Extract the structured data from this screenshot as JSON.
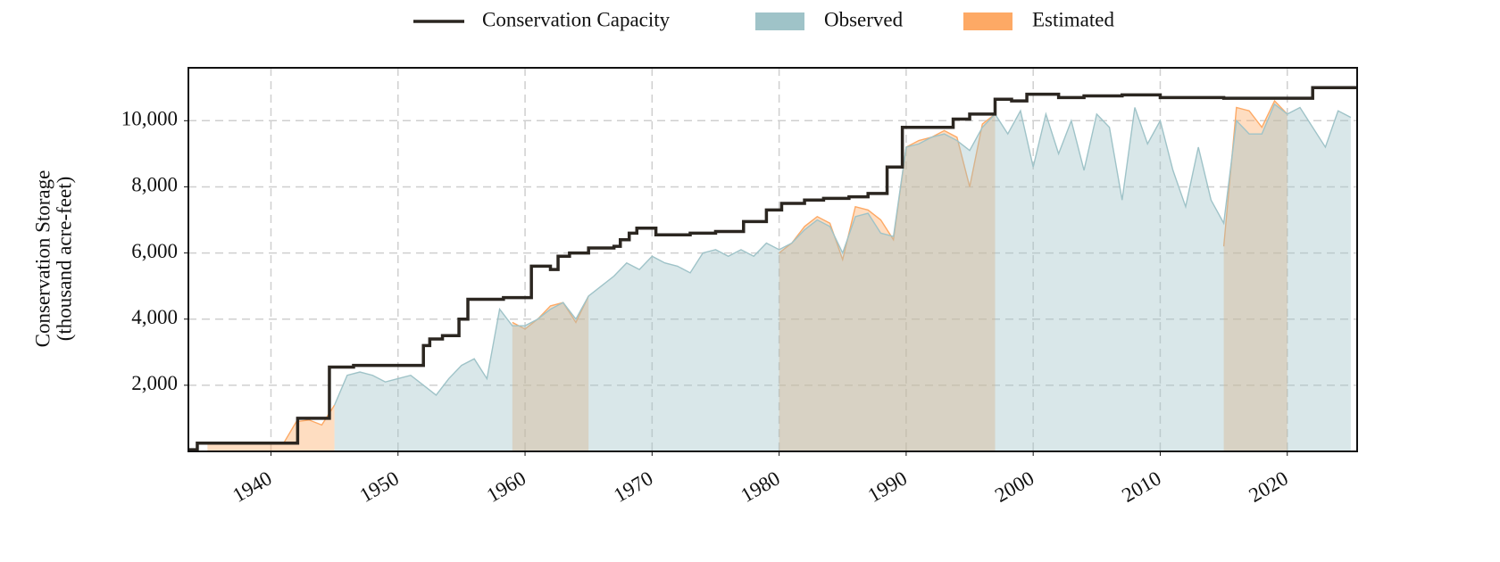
{
  "chart_data": {
    "type": "area",
    "ylabel": [
      "Conservation Storage",
      "(thousand acre-feet)"
    ],
    "xlim": [
      1933.5,
      2025.5
    ],
    "ylim": [
      0,
      11600
    ],
    "xticks": [
      1940,
      1950,
      1960,
      1970,
      1980,
      1990,
      2000,
      2010,
      2020
    ],
    "yticks": [
      {
        "value": 2000,
        "label": "2,000"
      },
      {
        "value": 4000,
        "label": "4,000"
      },
      {
        "value": 6000,
        "label": "6,000"
      },
      {
        "value": 8000,
        "label": "8,000"
      },
      {
        "value": 10000,
        "label": "10,000"
      }
    ],
    "grid": true,
    "capacity": {
      "name": "Conservation Capacity",
      "color": "#2b2620",
      "step": "post",
      "x": [
        1933.5,
        1934.2,
        1942.1,
        1944.6,
        1946.5,
        1952,
        1952.5,
        1953.5,
        1954.8,
        1955.5,
        1958.3,
        1960.5,
        1962,
        1962.6,
        1963.5,
        1965,
        1967,
        1967.5,
        1968.2,
        1968.8,
        1970.3,
        1973,
        1975,
        1977.2,
        1979,
        1980.2,
        1982,
        1983.5,
        1985.5,
        1987,
        1988.5,
        1989.7,
        1993.7,
        1995,
        1997,
        1998.3,
        1999.5,
        2002,
        2004,
        2007,
        2010,
        2015,
        2022,
        2025.5
      ],
      "values": [
        50,
        250,
        1000,
        2550,
        2600,
        3200,
        3400,
        3500,
        4000,
        4600,
        4650,
        5600,
        5500,
        5900,
        6000,
        6150,
        6200,
        6400,
        6600,
        6750,
        6550,
        6600,
        6650,
        6950,
        7300,
        7500,
        7600,
        7650,
        7700,
        7800,
        8600,
        9800,
        10050,
        10200,
        10650,
        10600,
        10800,
        10700,
        10750,
        10780,
        10700,
        10680,
        11000,
        11000
      ]
    },
    "x": [
      1934,
      1935,
      1936,
      1937,
      1938,
      1939,
      1940,
      1941,
      1942,
      1943,
      1944,
      1945,
      1946,
      1947,
      1948,
      1949,
      1950,
      1951,
      1952,
      1953,
      1954,
      1955,
      1956,
      1957,
      1958,
      1959,
      1960,
      1961,
      1962,
      1963,
      1964,
      1965,
      1966,
      1967,
      1968,
      1969,
      1970,
      1971,
      1972,
      1973,
      1974,
      1975,
      1976,
      1977,
      1978,
      1979,
      1980,
      1981,
      1982,
      1983,
      1984,
      1985,
      1986,
      1987,
      1988,
      1989,
      1990,
      1991,
      1992,
      1993,
      1994,
      1995,
      1996,
      1997,
      1998,
      1999,
      2000,
      2001,
      2002,
      2003,
      2004,
      2005,
      2006,
      2007,
      2008,
      2009,
      2010,
      2011,
      2012,
      2013,
      2014,
      2015,
      2016,
      2017,
      2018,
      2019,
      2020,
      2021,
      2022,
      2023,
      2024,
      2025
    ],
    "series": [
      {
        "name": "Estimated",
        "color": "#fda965",
        "values": [
          null,
          250,
          250,
          250,
          250,
          250,
          250,
          250,
          900,
          950,
          800,
          1400,
          null,
          null,
          null,
          null,
          null,
          null,
          null,
          null,
          null,
          null,
          null,
          null,
          null,
          3900,
          3700,
          4000,
          4400,
          4500,
          3900,
          4700,
          null,
          null,
          null,
          null,
          null,
          null,
          null,
          null,
          null,
          null,
          null,
          null,
          null,
          null,
          6000,
          6300,
          6800,
          7100,
          6900,
          5800,
          7400,
          7300,
          7000,
          6400,
          9200,
          9400,
          9500,
          9700,
          9500,
          8000,
          9900,
          10200,
          null,
          null,
          null,
          null,
          null,
          null,
          null,
          null,
          null,
          null,
          null,
          null,
          null,
          null,
          null,
          null,
          null,
          6200,
          10400,
          10300,
          9800,
          10600,
          10200,
          null,
          null,
          null,
          null,
          null
        ]
      },
      {
        "name": "Observed",
        "color": "#9fc3c8",
        "values": [
          null,
          null,
          null,
          null,
          null,
          null,
          null,
          null,
          null,
          null,
          null,
          1400,
          2300,
          2400,
          2300,
          2100,
          2200,
          2300,
          2000,
          1700,
          2200,
          2600,
          2800,
          2200,
          4300,
          3800,
          3800,
          4000,
          4300,
          4500,
          4000,
          4700,
          5000,
          5300,
          5700,
          5500,
          5900,
          5700,
          5600,
          5400,
          6000,
          6100,
          5900,
          6100,
          5900,
          6300,
          6100,
          6300,
          6700,
          7000,
          6800,
          6000,
          7100,
          7200,
          6600,
          6500,
          9200,
          9300,
          9500,
          9600,
          9400,
          9100,
          9800,
          10200,
          9600,
          10300,
          8600,
          10200,
          9000,
          10000,
          8500,
          10200,
          9800,
          7600,
          10400,
          9300,
          10000,
          8500,
          7400,
          9200,
          7600,
          6900,
          10000,
          9600,
          9600,
          10500,
          10200,
          10400,
          9800,
          9200,
          10300,
          10100
        ]
      }
    ]
  }
}
